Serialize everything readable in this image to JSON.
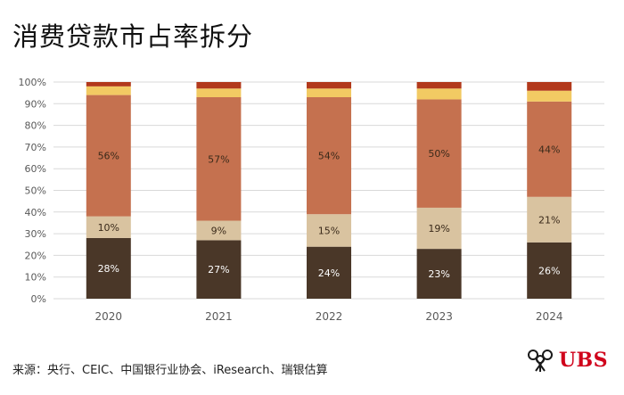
{
  "title": "消费贷款市占率拆分",
  "source": "来源：央行、CEIC、中国银行业协会、iResearch、瑞银估算",
  "logo": {
    "text": "UBS",
    "icon": "keys-icon"
  },
  "colors": {
    "seg1": "#4a3728",
    "seg2": "#d9c3a0",
    "seg3": "#c5714f",
    "seg4": "#f2ca63",
    "seg5": "#b2391c",
    "grid": "#d9d9d9",
    "axis_text": "#595959",
    "brand": "#d0021b"
  },
  "chart_data": {
    "type": "bar",
    "stacked": true,
    "categories": [
      "2020",
      "2021",
      "2022",
      "2023",
      "2024"
    ],
    "ylim": [
      0,
      100
    ],
    "yticks": [
      "0%",
      "10%",
      "20%",
      "30%",
      "40%",
      "50%",
      "60%",
      "70%",
      "80%",
      "90%",
      "100%"
    ],
    "series": [
      {
        "name": "",
        "values": [
          28,
          27,
          24,
          23,
          26
        ],
        "labels": [
          "28%",
          "27%",
          "24%",
          "23%",
          "26%"
        ]
      },
      {
        "name": "",
        "values": [
          10,
          9,
          15,
          19,
          21
        ],
        "labels": [
          "10%",
          "9%",
          "15%",
          "19%",
          "21%"
        ]
      },
      {
        "name": "",
        "values": [
          56,
          57,
          54,
          50,
          44
        ],
        "labels": [
          "56%",
          "57%",
          "54%",
          "50%",
          "44%"
        ]
      },
      {
        "name": "",
        "values": [
          4,
          4,
          4,
          5,
          5
        ],
        "labels": []
      },
      {
        "name": "",
        "values": [
          2,
          3,
          3,
          3,
          4
        ],
        "labels": []
      }
    ]
  }
}
